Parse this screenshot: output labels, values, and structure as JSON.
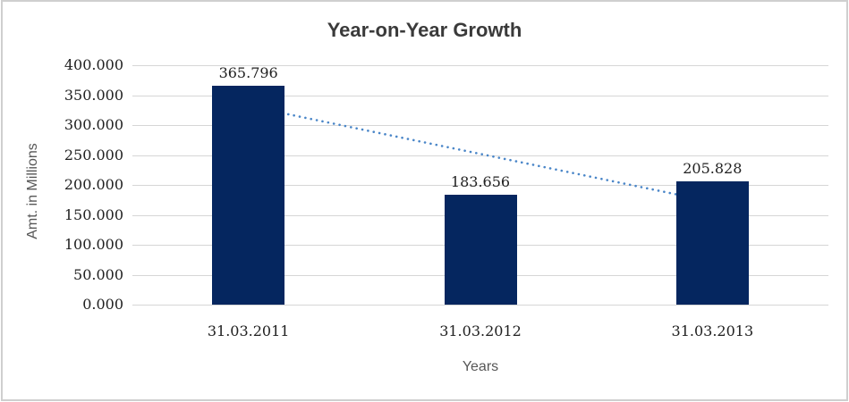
{
  "chart_data": {
    "type": "bar",
    "title": "Year-on-Year Growth",
    "xlabel": "Years",
    "ylabel": "Amt. in Millions",
    "categories": [
      "31.03.2011",
      "31.03.2012",
      "31.03.2013"
    ],
    "values": [
      365.796,
      183.656,
      205.828
    ],
    "data_labels": [
      "365.796",
      "183.656",
      "205.828"
    ],
    "ylim": [
      0,
      400
    ],
    "ytick_step": 50,
    "ytick_labels": [
      "0.000",
      "50.000",
      "100.000",
      "150.000",
      "200.000",
      "250.000",
      "300.000",
      "350.000",
      "400.000"
    ],
    "grid": true,
    "legend": "none",
    "colors": {
      "bar": "#05265f",
      "trendline": "#4a86c8",
      "gridline": "#d6d6d6",
      "title_text": "#3a3a3a",
      "tick_text": "#212121",
      "axis_title_text": "#575757",
      "frame_border": "#cfcfcf"
    },
    "trendline": {
      "type": "linear",
      "style": "dotted"
    }
  }
}
